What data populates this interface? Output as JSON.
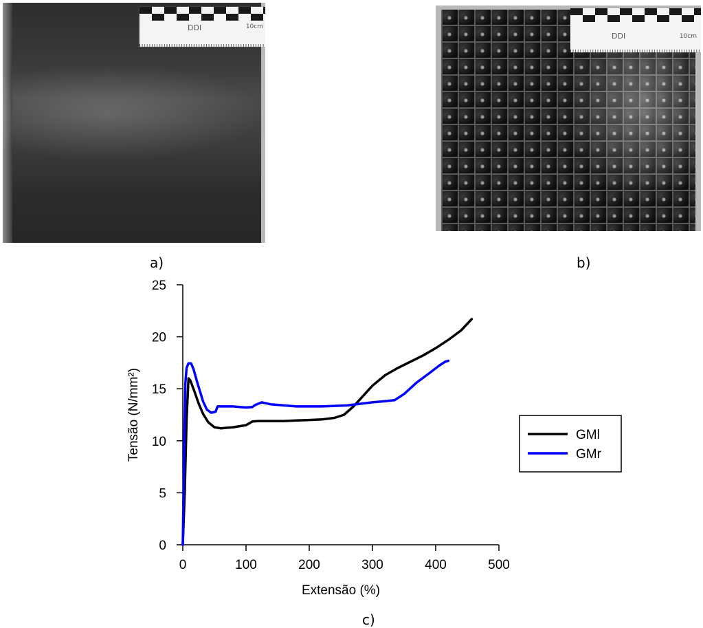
{
  "captions": {
    "a": "a)",
    "b": "b)",
    "c": "c)"
  },
  "photo_a": {
    "ruler_brand": "DDI",
    "ruler_unit": "10cm"
  },
  "photo_b": {
    "ruler_brand": "DDI",
    "ruler_unit": "10cm"
  },
  "chart_data": {
    "type": "line",
    "title": "",
    "xlabel": "Extensão (%)",
    "ylabel": "Tensão (N/mm²)",
    "xlim": [
      0,
      500
    ],
    "ylim": [
      0,
      25
    ],
    "xticks": [
      0,
      100,
      200,
      300,
      400,
      500
    ],
    "yticks": [
      0,
      5,
      10,
      15,
      20,
      25
    ],
    "grid": false,
    "legend_position": "right",
    "series": [
      {
        "name": "GMl",
        "color": "#000000",
        "x": [
          0,
          3,
          6,
          9,
          12,
          18,
          25,
          32,
          40,
          50,
          60,
          70,
          80,
          90,
          100,
          110,
          120,
          140,
          160,
          180,
          200,
          220,
          240,
          255,
          270,
          285,
          300,
          320,
          340,
          360,
          380,
          400,
          420,
          440,
          457
        ],
        "y": [
          0,
          5,
          12,
          16.0,
          15.8,
          14.8,
          13.6,
          12.6,
          11.8,
          11.3,
          11.2,
          11.25,
          11.3,
          11.4,
          11.5,
          11.85,
          11.9,
          11.9,
          11.9,
          11.95,
          12.0,
          12.05,
          12.2,
          12.5,
          13.3,
          14.3,
          15.3,
          16.3,
          17.0,
          17.6,
          18.2,
          18.9,
          19.7,
          20.6,
          21.7
        ]
      },
      {
        "name": "GMr",
        "color": "#0000ff",
        "x": [
          0,
          2,
          4,
          6,
          9,
          13,
          17,
          22,
          27,
          32,
          38,
          45,
          52,
          55,
          60,
          70,
          80,
          90,
          100,
          110,
          115,
          125,
          140,
          160,
          180,
          200,
          220,
          240,
          260,
          280,
          300,
          320,
          335,
          350,
          370,
          390,
          405,
          415,
          420
        ],
        "y": [
          0,
          8,
          15.5,
          17.0,
          17.45,
          17.45,
          16.9,
          15.8,
          14.8,
          13.8,
          13.0,
          12.7,
          12.8,
          13.3,
          13.3,
          13.3,
          13.3,
          13.25,
          13.2,
          13.25,
          13.45,
          13.7,
          13.5,
          13.4,
          13.3,
          13.3,
          13.3,
          13.35,
          13.4,
          13.55,
          13.7,
          13.8,
          13.9,
          14.5,
          15.6,
          16.5,
          17.2,
          17.6,
          17.7
        ]
      }
    ]
  }
}
